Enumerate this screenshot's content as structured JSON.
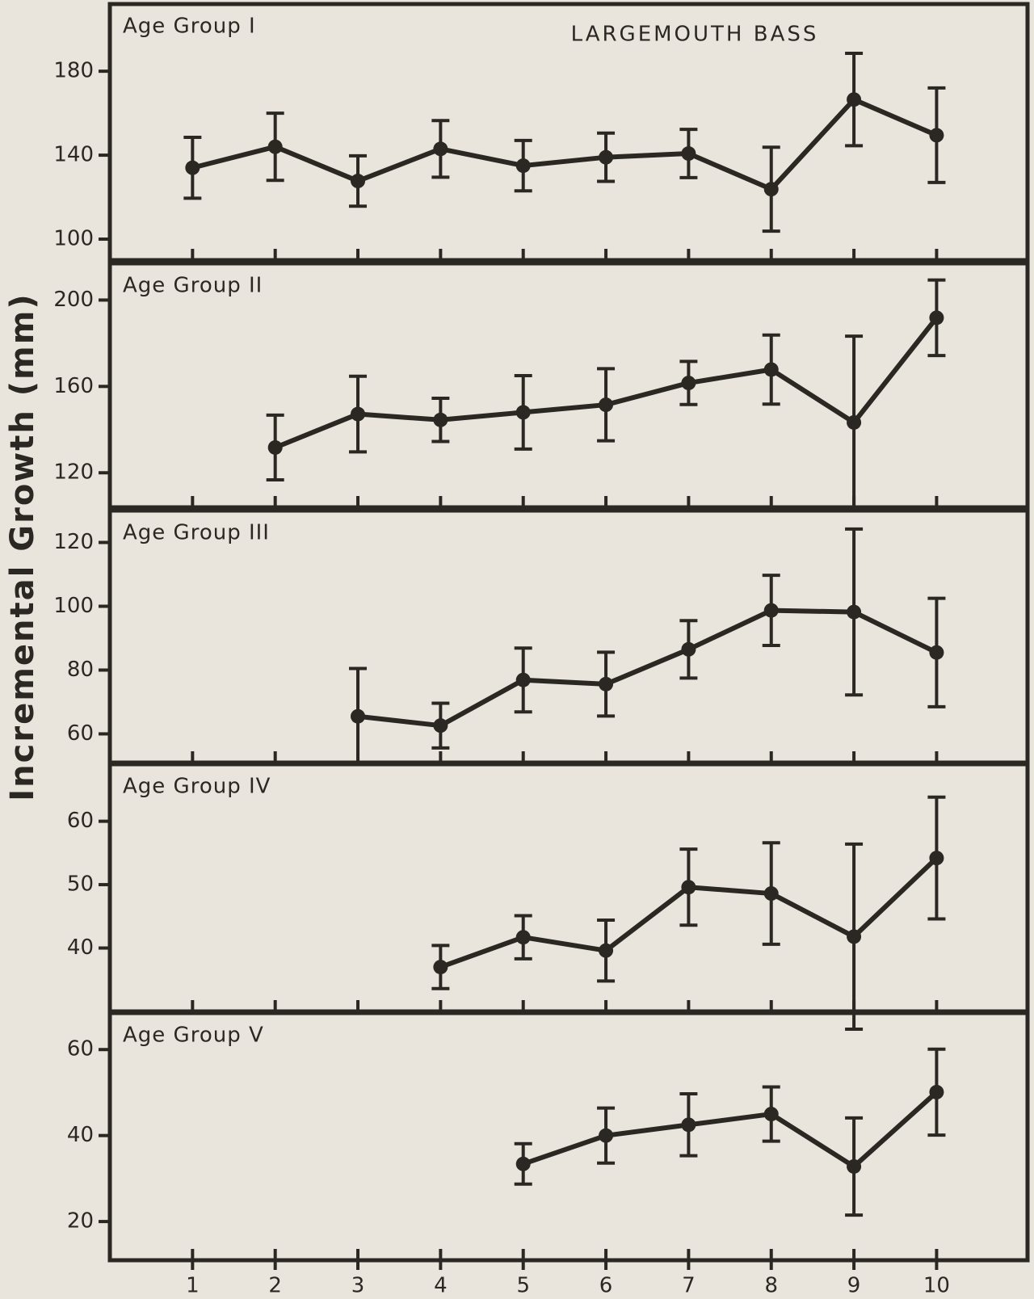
{
  "ylabel": "Incremental Growth (mm)",
  "chart_data": [
    {
      "type": "line",
      "title": "LARGEMOUTH BASS",
      "panel_label": "Age Group I",
      "x": [
        1,
        2,
        3,
        4,
        5,
        6,
        7,
        8,
        9,
        10
      ],
      "series": [
        {
          "color": "#2b2823",
          "values": [
            134,
            144,
            127.7,
            143,
            135,
            139,
            140.8,
            123.8,
            166.5,
            149.5
          ],
          "errors": [
            14.5,
            16,
            12,
            13.5,
            12,
            11.5,
            11.5,
            20,
            22,
            22.5
          ]
        }
      ],
      "xlim": [
        0,
        11.1
      ],
      "xticks": [
        1,
        2,
        3,
        4,
        5,
        6,
        7,
        8,
        9,
        10
      ],
      "ylim": [
        90,
        212
      ],
      "yticks": [
        100,
        140,
        180
      ]
    },
    {
      "type": "line",
      "panel_label": "Age Group II",
      "x": [
        2,
        3,
        4,
        5,
        6,
        7,
        8,
        9,
        10
      ],
      "series": [
        {
          "color": "#2b2823",
          "values": [
            131.7,
            147.2,
            144.5,
            148,
            151.5,
            161.6,
            167.8,
            143.3,
            191.8
          ],
          "errors": [
            15,
            17.5,
            10,
            17,
            16.7,
            10,
            16,
            40,
            17.5
          ]
        }
      ],
      "xlim": [
        0,
        11.1
      ],
      "xticks": [
        1,
        2,
        3,
        4,
        5,
        6,
        7,
        8,
        9,
        10
      ],
      "ylim": [
        104,
        217
      ],
      "yticks": [
        120,
        160,
        200
      ]
    },
    {
      "type": "line",
      "panel_label": "Age Group III",
      "x": [
        3,
        4,
        5,
        6,
        7,
        8,
        9,
        10
      ],
      "series": [
        {
          "color": "#2b2823",
          "values": [
            65.5,
            62.6,
            76.9,
            75.6,
            86.5,
            98.7,
            98.2,
            85.5
          ],
          "errors": [
            15,
            7,
            10,
            10,
            9,
            11,
            26,
            17
          ]
        }
      ],
      "xlim": [
        0,
        11.1
      ],
      "xticks": [
        1,
        2,
        3,
        4,
        5,
        6,
        7,
        8,
        9,
        10
      ],
      "ylim": [
        51,
        130
      ],
      "yticks": [
        60,
        80,
        100,
        120
      ]
    },
    {
      "type": "line",
      "panel_label": "Age Group IV",
      "x": [
        4,
        5,
        6,
        7,
        8,
        9,
        10
      ],
      "series": [
        {
          "color": "#2b2823",
          "values": [
            37,
            41.7,
            39.6,
            49.6,
            48.6,
            41.8,
            54.2
          ],
          "errors": [
            3.4,
            3.4,
            4.8,
            6,
            8,
            14.6,
            9.6
          ]
        }
      ],
      "xlim": [
        0,
        11.1
      ],
      "xticks": [
        1,
        2,
        3,
        4,
        5,
        6,
        7,
        8,
        9,
        10
      ],
      "ylim": [
        30,
        69
      ],
      "yticks": [
        40,
        50,
        60
      ]
    },
    {
      "type": "line",
      "panel_label": "Age Group V",
      "x": [
        5,
        6,
        7,
        8,
        9,
        10
      ],
      "series": [
        {
          "color": "#2b2823",
          "values": [
            33.4,
            40,
            42.5,
            45,
            32.8,
            50.1
          ],
          "errors": [
            4.7,
            6.4,
            7.2,
            6.3,
            11.3,
            10
          ]
        }
      ],
      "xlim": [
        0,
        11.1
      ],
      "xticks": [
        1,
        2,
        3,
        4,
        5,
        6,
        7,
        8,
        9,
        10
      ],
      "ylim": [
        11,
        68.5
      ],
      "yticks": [
        20,
        40,
        60
      ]
    }
  ]
}
